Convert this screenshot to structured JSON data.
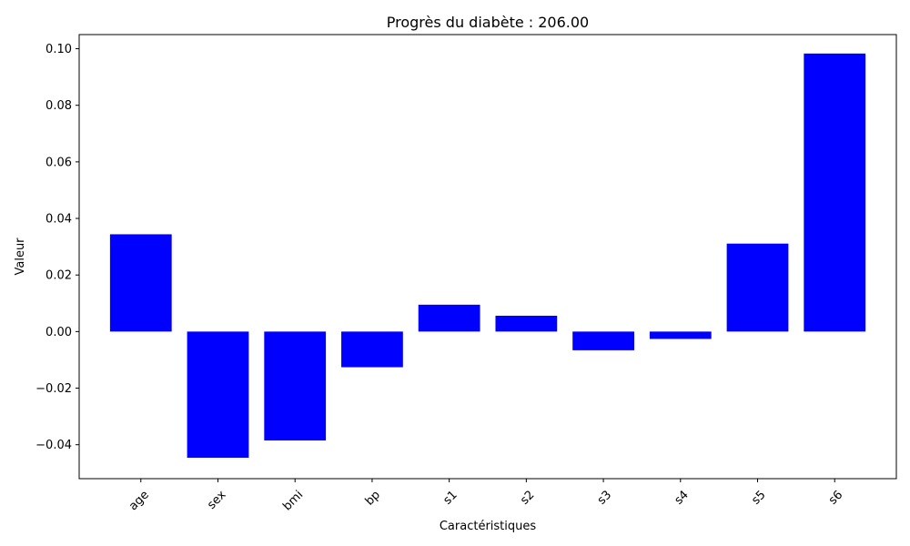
{
  "chart_data": {
    "type": "bar",
    "title": "Progrès du diabète : 206.00",
    "xlabel": "Caractéristiques",
    "ylabel": "Valeur",
    "categories": [
      "age",
      "sex",
      "bmi",
      "bp",
      "s1",
      "s2",
      "s3",
      "s4",
      "s5",
      "s6"
    ],
    "values": [
      0.0344,
      -0.0446,
      -0.0385,
      -0.0126,
      0.0095,
      0.0056,
      -0.0066,
      -0.0026,
      0.0311,
      0.0983
    ],
    "ylim": [
      -0.052,
      0.105
    ],
    "yticks": [
      -0.04,
      -0.02,
      0.0,
      0.02,
      0.04,
      0.06,
      0.08,
      0.1
    ],
    "ytick_labels": [
      "−0.04",
      "−0.02",
      "0.00",
      "0.02",
      "0.04",
      "0.06",
      "0.08",
      "0.10"
    ],
    "bar_color": "#0000ff",
    "grid": false,
    "legend": "none"
  }
}
